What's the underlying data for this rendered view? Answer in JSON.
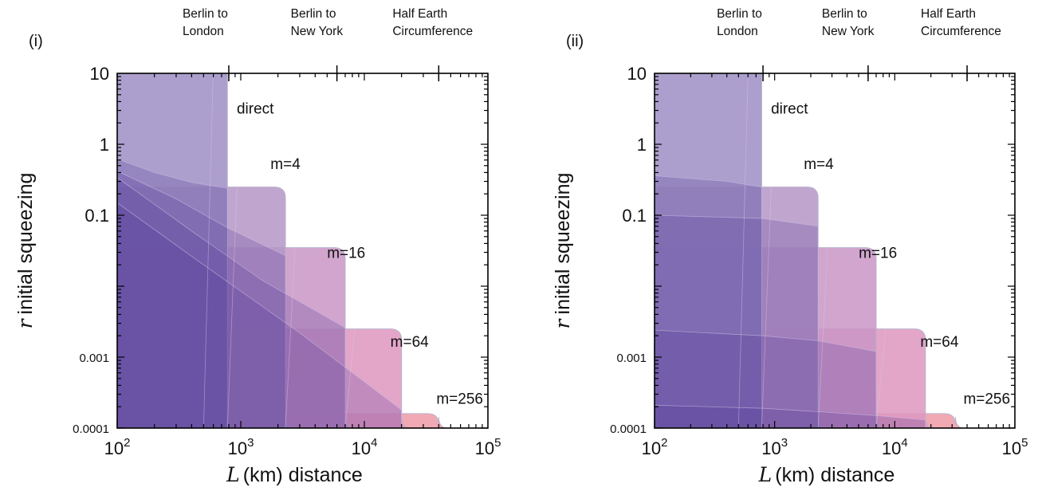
{
  "colors": {
    "direct": "#a395c8",
    "m=4": "#b596c6",
    "m=16": "#c995c6",
    "m=64": "#de97bf",
    "m=256": "#ef9aa6",
    "overlap_base": "#4a2c90",
    "frame": "#000000"
  },
  "chart_data": [
    {
      "type": "area",
      "panel_label": "(i)",
      "x_scale": "log",
      "y_scale": "log",
      "xlim": [
        100,
        100000
      ],
      "ylim": [
        0.0001,
        10
      ],
      "xlabel_var": "L",
      "xlabel_text": "(km) distance",
      "ylabel_var": "r",
      "ylabel_text": "initial squeezing",
      "x_ticks": [
        {
          "value": 100,
          "base": "10",
          "exp": "2"
        },
        {
          "value": 1000,
          "base": "10",
          "exp": "3"
        },
        {
          "value": 10000,
          "base": "10",
          "exp": "4"
        },
        {
          "value": 100000,
          "base": "10",
          "exp": "5"
        }
      ],
      "y_ticks": [
        {
          "value": 10,
          "label": "10",
          "small": false
        },
        {
          "value": 1,
          "label": "1",
          "small": false
        },
        {
          "value": 0.1,
          "label": "0.1",
          "small": false
        },
        {
          "value": 0.001,
          "label": "0.001",
          "small": true
        },
        {
          "value": 0.0001,
          "label": "0.0001",
          "small": true
        }
      ],
      "top_markers": [
        {
          "x": 800,
          "line1": "Berlin to",
          "line2": "London"
        },
        {
          "x": 6000,
          "line1": "Berlin to",
          "line2": "New York"
        },
        {
          "x": 40000,
          "line1": "Half Earth",
          "line2": "Circumference"
        }
      ],
      "regions": [
        {
          "name": "m=256",
          "label": "m=256",
          "label_at": [
            33000,
            0.00022
          ],
          "max_L": 40000,
          "r_max": 0.00016
        },
        {
          "name": "m=64",
          "label": "m=64",
          "label_at": [
            14000,
            0.0014
          ],
          "max_L": 20000,
          "r_max": 0.0025
        },
        {
          "name": "m=16",
          "label": "m=16",
          "label_at": [
            4300,
            0.025
          ],
          "max_L": 7000,
          "r_max": 0.035
        },
        {
          "name": "m=4",
          "label": "m=4",
          "label_at": [
            1500,
            0.45
          ],
          "max_L": 2300,
          "r_max": 0.25
        },
        {
          "name": "direct",
          "label": "direct",
          "label_at": [
            800,
            2.7
          ],
          "max_L": 780,
          "r_max": 10
        }
      ],
      "lower_bounds": {
        "direct": [
          [
            100,
            0.62
          ],
          [
            200,
            0.4
          ],
          [
            400,
            0.29
          ],
          [
            780,
            0.24
          ]
        ],
        "m=4": [
          [
            100,
            0.42
          ],
          [
            300,
            0.17
          ],
          [
            800,
            0.065
          ],
          [
            2300,
            0.027
          ]
        ],
        "m=16": [
          [
            100,
            0.34
          ],
          [
            400,
            0.06
          ],
          [
            1500,
            0.012
          ],
          [
            7000,
            0.0026
          ]
        ],
        "m=64": [
          [
            100,
            0.15
          ],
          [
            500,
            0.02
          ],
          [
            3000,
            0.0022
          ],
          [
            20000,
            0.00018
          ]
        ]
      },
      "column_bounds": [
        500,
        780,
        2300,
        7000,
        20000
      ]
    },
    {
      "type": "area",
      "panel_label": "(ii)",
      "x_scale": "log",
      "y_scale": "log",
      "xlim": [
        100,
        100000
      ],
      "ylim": [
        0.0001,
        10
      ],
      "xlabel_var": "L",
      "xlabel_text": "(km) distance",
      "ylabel_var": "r",
      "ylabel_text": "initial squeezing",
      "x_ticks": [
        {
          "value": 100,
          "base": "10",
          "exp": "2"
        },
        {
          "value": 1000,
          "base": "10",
          "exp": "3"
        },
        {
          "value": 10000,
          "base": "10",
          "exp": "4"
        },
        {
          "value": 100000,
          "base": "10",
          "exp": "5"
        }
      ],
      "y_ticks": [
        {
          "value": 10,
          "label": "10",
          "small": false
        },
        {
          "value": 1,
          "label": "1",
          "small": false
        },
        {
          "value": 0.1,
          "label": "0.1",
          "small": false
        },
        {
          "value": 0.001,
          "label": "0.001",
          "small": true
        },
        {
          "value": 0.0001,
          "label": "0.0001",
          "small": true
        }
      ],
      "top_markers": [
        {
          "x": 800,
          "line1": "Berlin to",
          "line2": "London"
        },
        {
          "x": 6000,
          "line1": "Berlin to",
          "line2": "New York"
        },
        {
          "x": 40000,
          "line1": "Half Earth",
          "line2": "Circumference"
        }
      ],
      "regions": [
        {
          "name": "m=256",
          "label": "m=256",
          "label_at": [
            32000,
            0.00022
          ],
          "max_L": 32000,
          "r_max": 0.00016
        },
        {
          "name": "m=64",
          "label": "m=64",
          "label_at": [
            14000,
            0.0014
          ],
          "max_L": 18000,
          "r_max": 0.0025
        },
        {
          "name": "m=16",
          "label": "m=16",
          "label_at": [
            4300,
            0.025
          ],
          "max_L": 7000,
          "r_max": 0.035
        },
        {
          "name": "m=4",
          "label": "m=4",
          "label_at": [
            1500,
            0.45
          ],
          "max_L": 2300,
          "r_max": 0.25
        },
        {
          "name": "direct",
          "label": "direct",
          "label_at": [
            800,
            2.7
          ],
          "max_L": 780,
          "r_max": 10
        }
      ],
      "lower_bounds": {
        "direct": [
          [
            100,
            0.36
          ],
          [
            400,
            0.3
          ],
          [
            780,
            0.25
          ]
        ],
        "m=4": [
          [
            100,
            0.1
          ],
          [
            800,
            0.09
          ],
          [
            2300,
            0.07
          ]
        ],
        "m=16": [
          [
            100,
            0.0024
          ],
          [
            800,
            0.002
          ],
          [
            2300,
            0.0017
          ],
          [
            7000,
            0.0012
          ]
        ],
        "m=64": [
          [
            100,
            0.00021
          ],
          [
            800,
            0.00019
          ],
          [
            2300,
            0.00017
          ],
          [
            7000,
            0.00015
          ],
          [
            18000,
            0.00013
          ]
        ]
      },
      "column_bounds": [
        500,
        780,
        2300,
        7000,
        18000
      ]
    }
  ]
}
